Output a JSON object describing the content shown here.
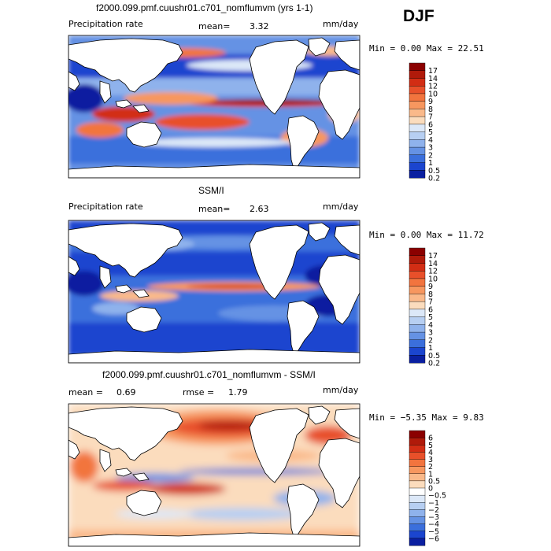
{
  "season": "DJF",
  "panels": [
    {
      "title": "f2000.099.pmf.cuushr01.c701_nomflumvm (yrs 1-1)",
      "variable": "Precipitation rate",
      "mean_label": "mean=",
      "mean_value": "3.32",
      "units": "mm/day",
      "minmax": "Min =   0.00 Max =  22.51"
    },
    {
      "title": "SSM/I",
      "variable": "Precipitation rate",
      "mean_label": "mean=",
      "mean_value": "2.63",
      "units": "mm/day",
      "minmax": "Min =   0.00 Max =  11.72"
    },
    {
      "title": "f2000.099.pmf.cuushr01.c701_nomflumvm - SSM/I",
      "mean_label": "mean =",
      "mean_value": "0.69",
      "rmse_label": "rmse =",
      "rmse_value": "1.79",
      "units": "mm/day",
      "minmax": "Min =  −5.35 Max =   9.83"
    }
  ],
  "chart_data": [
    {
      "type": "heatmap",
      "title": "f2000.099.pmf.cuushr01.c701_nomflumvm (yrs 1-1)",
      "colorbar_levels": [
        "17",
        "14",
        "12",
        "10",
        "9",
        "8",
        "7",
        "6",
        "5",
        "4",
        "3",
        "2",
        "1",
        "0.5",
        "0.2"
      ],
      "colorbar_colors": [
        "#8b0000",
        "#b01a0a",
        "#d22d14",
        "#e8502a",
        "#f2743e",
        "#f7975f",
        "#fab98a",
        "#fbdcbd",
        "#dce8f8",
        "#b7cff2",
        "#8fb2ec",
        "#6592e4",
        "#3b6fdc",
        "#1b45cf",
        "#0a1fa0"
      ]
    },
    {
      "type": "heatmap",
      "title": "SSM/I",
      "colorbar_levels": [
        "17",
        "14",
        "12",
        "10",
        "9",
        "8",
        "7",
        "6",
        "5",
        "4",
        "3",
        "2",
        "1",
        "0.5",
        "0.2"
      ],
      "colorbar_colors": [
        "#8b0000",
        "#b01a0a",
        "#d22d14",
        "#e8502a",
        "#f2743e",
        "#f7975f",
        "#fab98a",
        "#fbdcbd",
        "#dce8f8",
        "#b7cff2",
        "#8fb2ec",
        "#6592e4",
        "#3b6fdc",
        "#1b45cf",
        "#0a1fa0"
      ]
    },
    {
      "type": "heatmap",
      "title": "f2000.099.pmf.cuushr01.c701_nomflumvm - SSM/I",
      "colorbar_levels": [
        "6",
        "5",
        "4",
        "3",
        "2",
        "1",
        "0.5",
        "0",
        "−0.5",
        "−1",
        "−2",
        "−3",
        "−4",
        "−5",
        "−6"
      ],
      "colorbar_colors": [
        "#8b0000",
        "#b01a0a",
        "#d22d14",
        "#e8502a",
        "#f2743e",
        "#f7975f",
        "#fab98a",
        "#fbdcbd",
        "#ffffff",
        "#dce8f8",
        "#b7cff2",
        "#8fb2ec",
        "#6592e4",
        "#3b6fdc",
        "#1b45cf",
        "#0a1fa0"
      ]
    }
  ]
}
